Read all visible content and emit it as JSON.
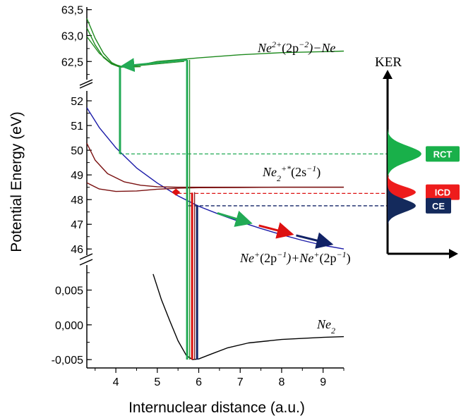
{
  "chart_data": {
    "type": "line",
    "xlabel": "Internuclear distance (a.u.)",
    "ylabel": "Potential Energy (eV)",
    "xlim": [
      3.3,
      9.5
    ],
    "x_ticks": [
      "4",
      "5",
      "6",
      "7",
      "8",
      "9"
    ],
    "panels": [
      {
        "name": "top",
        "ylim": [
          62.15,
          63.55
        ],
        "y_ticks": [
          "62,5",
          "63,0",
          "63,5"
        ],
        "y_tick_values": [
          62.5,
          63.0,
          63.5
        ]
      },
      {
        "name": "middle",
        "ylim": [
          45.75,
          52.4
        ],
        "y_ticks": [
          "46",
          "47",
          "48",
          "49",
          "50",
          "51",
          "52"
        ],
        "y_tick_values": [
          46,
          47,
          48,
          49,
          50,
          51,
          52
        ]
      },
      {
        "name": "bottom",
        "ylim": [
          -0.0062,
          0.0086
        ],
        "y_ticks": [
          "-0,005",
          "0,000",
          "0,005"
        ],
        "y_tick_values": [
          -0.005,
          0.0,
          0.005
        ]
      }
    ],
    "curve_labels": {
      "ne2plus_ne": {
        "main": "Ne",
        "sup1": "2+",
        "mid": "(2p",
        "sup2": "−2",
        "tail": ")−Ne"
      },
      "ne2_2s": {
        "main": "Ne",
        "sub": "2",
        "sup": "+*",
        "mid": "(2s",
        "sup2": "−1",
        "tail": ")"
      },
      "ne_ne": {
        "a": "Ne",
        "a_sup": "+",
        "b": "(2p",
        "b_sup": "−1",
        "c": ")+Ne",
        "c_sup": "+",
        "d": "(2p",
        "d_sup": "−1",
        "e": ")"
      },
      "ne2": {
        "main": "Ne",
        "sub": "2"
      }
    },
    "series": [
      {
        "panel": "top",
        "color": "#1e8a1e",
        "x": [
          3.3,
          3.5,
          3.7,
          3.9,
          4.1,
          4.5,
          5.0,
          6.0,
          7.0,
          8.0,
          9.0,
          9.5
        ],
        "values": [
          63.33,
          62.95,
          62.66,
          62.48,
          62.4,
          62.42,
          62.5,
          62.57,
          62.63,
          62.67,
          62.69,
          62.7
        ]
      },
      {
        "panel": "top",
        "color": "#1e8a1e",
        "x": [
          3.3,
          3.5,
          3.7,
          3.9,
          4.1,
          4.4
        ],
        "values": [
          63.15,
          62.82,
          62.58,
          62.45,
          62.39,
          62.4
        ]
      },
      {
        "panel": "top",
        "color": "#1e8a1e",
        "x": [
          3.3,
          3.6,
          3.9,
          4.2,
          4.6
        ],
        "values": [
          62.98,
          62.66,
          62.46,
          62.39,
          62.4
        ]
      },
      {
        "panel": "middle",
        "color": "#1a1aa8",
        "x": [
          3.3,
          3.6,
          4.0,
          4.5,
          5.0,
          5.5,
          6.0,
          6.5,
          7.0,
          7.5,
          8.0,
          8.5,
          9.0,
          9.5
        ],
        "values": [
          51.72,
          50.92,
          50.1,
          49.28,
          48.67,
          48.15,
          47.73,
          47.4,
          47.1,
          46.83,
          46.58,
          46.35,
          46.15,
          46.0
        ]
      },
      {
        "panel": "middle",
        "color": "#7a1010",
        "x": [
          3.3,
          3.5,
          3.8,
          4.2,
          4.6,
          5.0,
          5.5,
          6.0,
          7.0,
          8.0,
          9.5
        ],
        "values": [
          50.28,
          49.6,
          49.05,
          48.72,
          48.58,
          48.52,
          48.5,
          48.5,
          48.5,
          48.5,
          48.5
        ]
      },
      {
        "panel": "middle",
        "color": "#7a1010",
        "x": [
          3.3,
          3.6,
          4.0,
          4.5,
          5.0,
          5.5,
          6.0,
          7.0,
          8.0,
          9.5
        ],
        "values": [
          48.68,
          48.43,
          48.33,
          48.35,
          48.42,
          48.46,
          48.48,
          48.49,
          48.5,
          48.5
        ]
      },
      {
        "panel": "bottom",
        "color": "#000000",
        "x": [
          4.9,
          5.1,
          5.3,
          5.5,
          5.7,
          5.85,
          6.0,
          6.3,
          6.7,
          7.2,
          8.0,
          9.0,
          9.5
        ],
        "values": [
          0.0073,
          0.0036,
          0.0006,
          -0.0023,
          -0.0044,
          -0.005,
          -0.0049,
          -0.0042,
          -0.0033,
          -0.0026,
          -0.0021,
          -0.0018,
          -0.0017
        ]
      }
    ],
    "guides": [
      {
        "color": "#22aa55",
        "y": 49.85,
        "x_from": 4.1
      },
      {
        "color": "#dd1111",
        "y": 48.25,
        "x_from": 5.5
      },
      {
        "color": "#112266",
        "y": 47.75,
        "x_from": 5.75
      }
    ],
    "ker": {
      "title": "KER",
      "peaks": [
        {
          "label": "RCT",
          "color": "#19b04a",
          "energy": 49.85
        },
        {
          "label": "ICD",
          "color": "#ee1c1c",
          "energy": 48.3
        },
        {
          "label": "CE",
          "color": "#142a5c",
          "energy": 47.75
        }
      ]
    }
  }
}
